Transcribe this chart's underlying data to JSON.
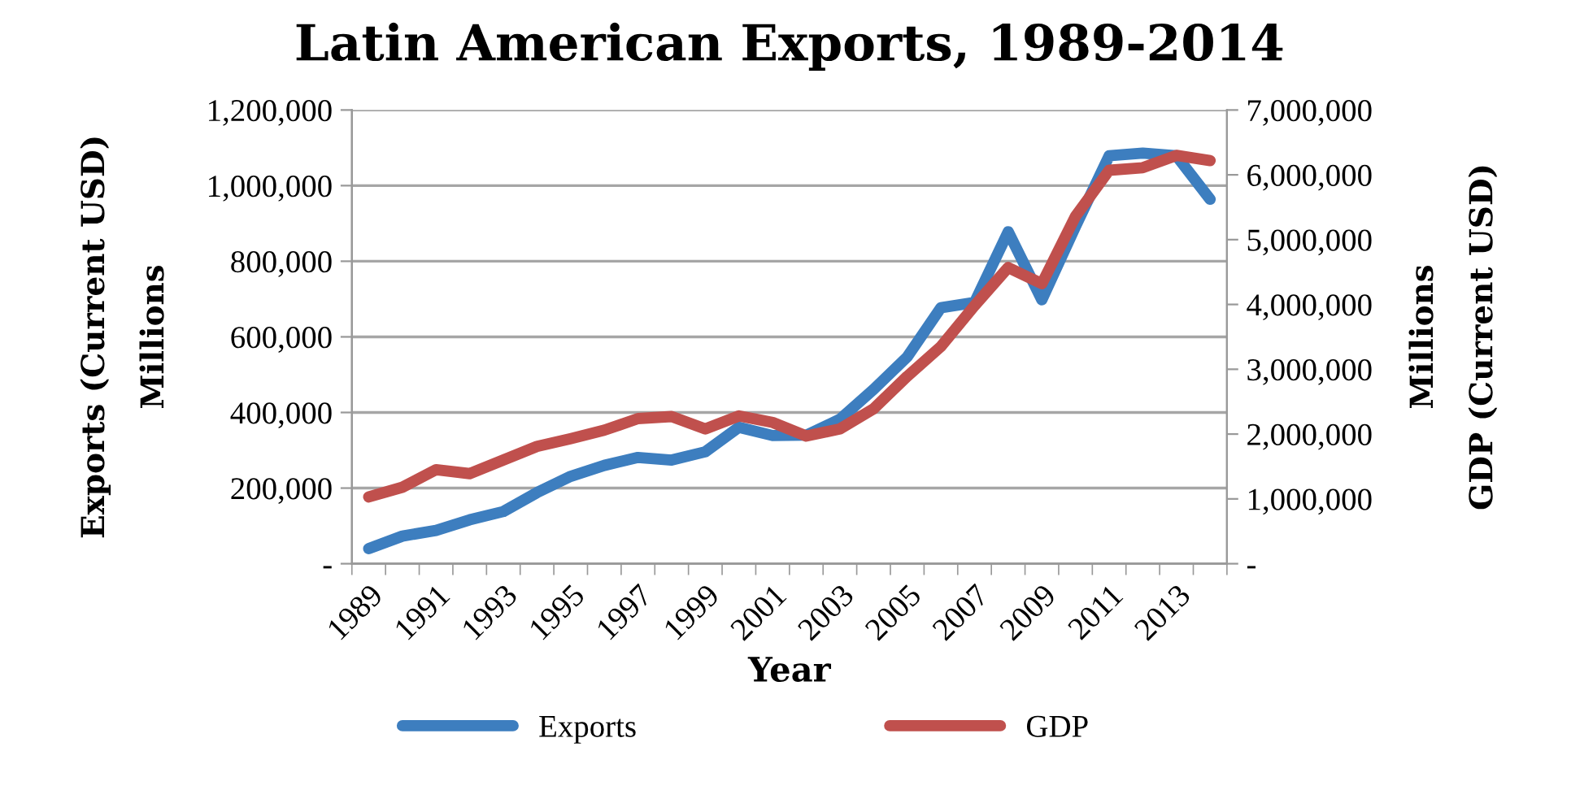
{
  "chart_data": {
    "type": "line",
    "title": "Latin American Exports, 1989-2014",
    "xlabel": "Year",
    "ylabel": "Exports (Current USD)\nMillions",
    "y2label": "Millions\nGDP (Current USD)",
    "categories": [
      "1989",
      null,
      "1991",
      null,
      "1993",
      null,
      "1995",
      null,
      "1997",
      null,
      "1999",
      null,
      "2001",
      null,
      "2003",
      null,
      "2005",
      null,
      "2007",
      null,
      "2009",
      null,
      "2011",
      null,
      "2013",
      null
    ],
    "series": [
      {
        "name": "Exports",
        "color": "#3d7ebf",
        "values": [
          40000,
          73000,
          88000,
          116000,
          138000,
          188000,
          231000,
          260000,
          281000,
          274000,
          296000,
          361000,
          339000,
          340000,
          382000,
          461000,
          547000,
          677000,
          691000,
          878000,
          698000,
          892000,
          1079000,
          1086000,
          1079000,
          964000
        ]
      },
      {
        "name": "GDP",
        "color": "#c0504d",
        "axis": "y2",
        "values": [
          1030000,
          1180000,
          1450000,
          1390000,
          1600000,
          1810000,
          1930000,
          2060000,
          2240000,
          2270000,
          2080000,
          2280000,
          2180000,
          1970000,
          2080000,
          2390000,
          2890000,
          3350000,
          3980000,
          4570000,
          4320000,
          5360000,
          6070000,
          6110000,
          6300000,
          6220000
        ]
      }
    ],
    "ylim": [
      0,
      1200000
    ],
    "yticks": [
      {
        "value": 0,
        "label": "-"
      },
      {
        "value": 200000,
        "label": "200,000"
      },
      {
        "value": 400000,
        "label": "400,000"
      },
      {
        "value": 600000,
        "label": "600,000"
      },
      {
        "value": 800000,
        "label": "800,000"
      },
      {
        "value": 1000000,
        "label": "1,000,000"
      },
      {
        "value": 1200000,
        "label": "1,200,000"
      }
    ],
    "y2lim": [
      0,
      7000000
    ],
    "y2ticks": [
      {
        "value": 0,
        "label": "-"
      },
      {
        "value": 1000000,
        "label": "1,000,000"
      },
      {
        "value": 2000000,
        "label": "2,000,000"
      },
      {
        "value": 3000000,
        "label": "3,000,000"
      },
      {
        "value": 4000000,
        "label": "4,000,000"
      },
      {
        "value": 5000000,
        "label": "5,000,000"
      },
      {
        "value": 6000000,
        "label": "6,000,000"
      },
      {
        "value": 7000000,
        "label": "7,000,000"
      }
    ],
    "grid": "y",
    "legend": "bottom",
    "marker": "none",
    "line_style": "solid"
  }
}
